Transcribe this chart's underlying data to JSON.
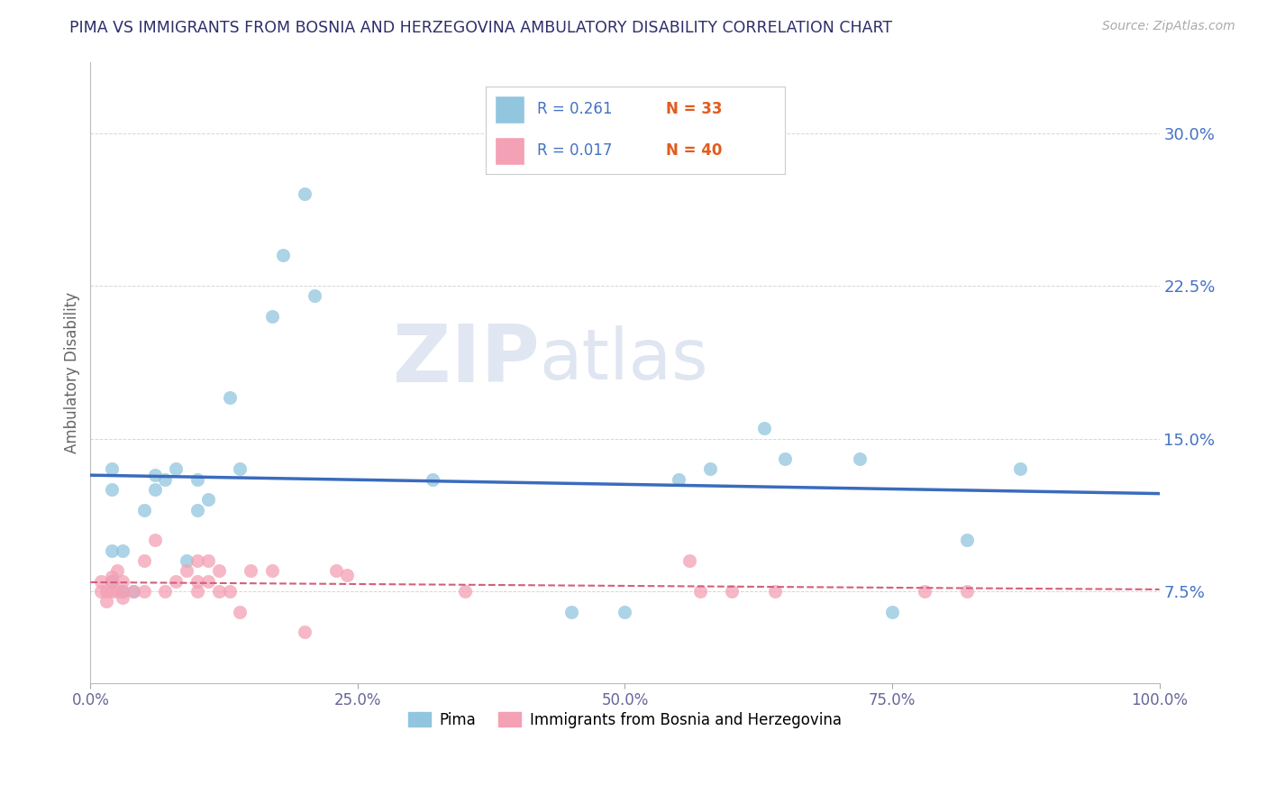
{
  "title": "PIMA VS IMMIGRANTS FROM BOSNIA AND HERZEGOVINA AMBULATORY DISABILITY CORRELATION CHART",
  "source_text": "Source: ZipAtlas.com",
  "ylabel": "Ambulatory Disability",
  "xlim": [
    0.0,
    1.0
  ],
  "ylim": [
    0.03,
    0.335
  ],
  "yticks": [
    0.075,
    0.15,
    0.225,
    0.3
  ],
  "ytick_labels": [
    "7.5%",
    "15.0%",
    "22.5%",
    "30.0%"
  ],
  "xticks": [
    0.0,
    0.25,
    0.5,
    0.75,
    1.0
  ],
  "xtick_labels": [
    "0.0%",
    "25.0%",
    "50.0%",
    "75.0%",
    "100.0%"
  ],
  "grid_color": "#cccccc",
  "background_color": "#ffffff",
  "watermark_ZIP": "ZIP",
  "watermark_atlas": "atlas",
  "color_blue_scatter": "#92c5de",
  "color_pink_scatter": "#f4a0b5",
  "color_blue_line": "#3a6bbd",
  "color_pink_line": "#d45f7a",
  "color_blue_label": "#4472c4",
  "color_orange_label": "#e05c20",
  "color_title": "#2d2d6b",
  "color_ylabel": "#666666",
  "color_xtick": "#666699",
  "legend_R1": "R = 0.261",
  "legend_N1": "N = 33",
  "legend_R2": "R = 0.017",
  "legend_N2": "N = 40",
  "pima_x": [
    0.02,
    0.02,
    0.02,
    0.03,
    0.04,
    0.05,
    0.06,
    0.07,
    0.08,
    0.09,
    0.1,
    0.1,
    0.11,
    0.13,
    0.14,
    0.17,
    0.18,
    0.2,
    0.21,
    0.32,
    0.45,
    0.5,
    0.55,
    0.58,
    0.63,
    0.65,
    0.72,
    0.75,
    0.82,
    0.87,
    0.02,
    0.03,
    0.06
  ],
  "pima_y": [
    0.135,
    0.125,
    0.095,
    0.095,
    0.075,
    0.115,
    0.132,
    0.13,
    0.135,
    0.09,
    0.115,
    0.13,
    0.12,
    0.17,
    0.135,
    0.21,
    0.24,
    0.27,
    0.22,
    0.13,
    0.065,
    0.065,
    0.13,
    0.135,
    0.155,
    0.14,
    0.14,
    0.065,
    0.1,
    0.135,
    0.08,
    0.075,
    0.125
  ],
  "bosnia_x": [
    0.01,
    0.01,
    0.015,
    0.015,
    0.02,
    0.02,
    0.02,
    0.025,
    0.025,
    0.03,
    0.03,
    0.03,
    0.04,
    0.05,
    0.05,
    0.06,
    0.07,
    0.08,
    0.09,
    0.1,
    0.1,
    0.1,
    0.11,
    0.11,
    0.12,
    0.12,
    0.13,
    0.14,
    0.15,
    0.17,
    0.2,
    0.23,
    0.24,
    0.35,
    0.56,
    0.57,
    0.6,
    0.64,
    0.78,
    0.82
  ],
  "bosnia_y": [
    0.08,
    0.075,
    0.075,
    0.07,
    0.082,
    0.08,
    0.075,
    0.085,
    0.075,
    0.075,
    0.08,
    0.072,
    0.075,
    0.09,
    0.075,
    0.1,
    0.075,
    0.08,
    0.085,
    0.09,
    0.075,
    0.08,
    0.08,
    0.09,
    0.075,
    0.085,
    0.075,
    0.065,
    0.085,
    0.085,
    0.055,
    0.085,
    0.083,
    0.075,
    0.09,
    0.075,
    0.075,
    0.075,
    0.075,
    0.075
  ]
}
